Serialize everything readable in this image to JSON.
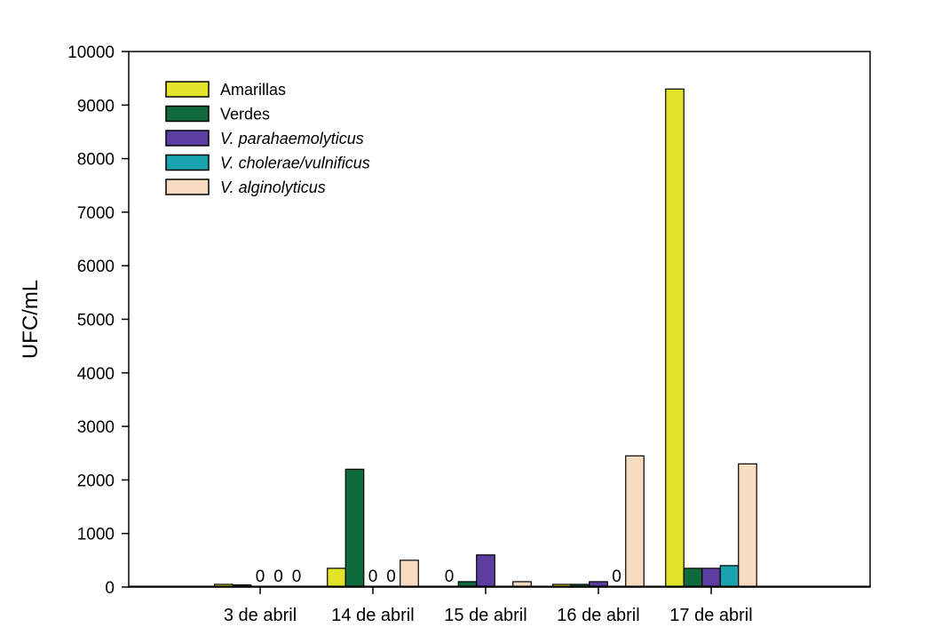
{
  "chart_data": {
    "type": "bar",
    "xlabel": "",
    "ylabel": "UFC/mL",
    "ylim": [
      0,
      10000
    ],
    "yticks": [
      0,
      1000,
      2000,
      3000,
      4000,
      5000,
      6000,
      7000,
      8000,
      9000,
      10000
    ],
    "grid": false,
    "legend_position": "top-left",
    "categories": [
      "3 de abril",
      "14 de abril",
      "15 de abril",
      "16 de abril",
      "17 de abril"
    ],
    "series": [
      {
        "name": "Amarillas",
        "italic": false,
        "color": "#e3e32a",
        "values": [
          50,
          350,
          0,
          50,
          9300
        ]
      },
      {
        "name": "Verdes",
        "italic": false,
        "color": "#0f6b3c",
        "values": [
          40,
          2200,
          100,
          50,
          350
        ]
      },
      {
        "name": "V. parahaemolyticus",
        "italic": true,
        "color": "#5b3ea0",
        "values": [
          0,
          0,
          600,
          100,
          350
        ]
      },
      {
        "name": "V. cholerae/vulnificus",
        "italic": true,
        "color": "#1aa3ac",
        "values": [
          0,
          0,
          0,
          0,
          400
        ]
      },
      {
        "name": "V. alginolyticus",
        "italic": true,
        "color": "#f8dcc2",
        "values": [
          0,
          500,
          100,
          2450,
          2300
        ]
      }
    ],
    "zero_labels": [
      {
        "category": 0,
        "series": 2,
        "text": "0"
      },
      {
        "category": 0,
        "series": 3,
        "text": "0"
      },
      {
        "category": 0,
        "series": 4,
        "text": "0"
      },
      {
        "category": 1,
        "series": 2,
        "text": "0"
      },
      {
        "category": 1,
        "series": 3,
        "text": "0"
      },
      {
        "category": 2,
        "series": 0,
        "text": "0"
      },
      {
        "category": 3,
        "series": 3,
        "text": "0"
      }
    ]
  }
}
